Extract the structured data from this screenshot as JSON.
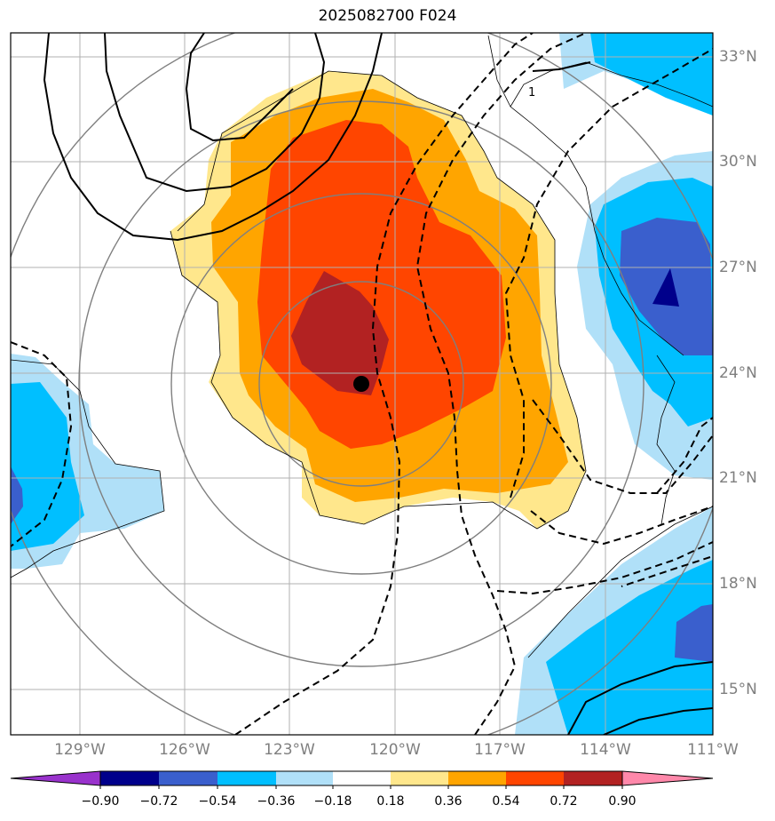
{
  "title": "2025082700 F024",
  "map": {
    "lat_labels": [
      "33°N",
      "30°N",
      "27°N",
      "24°N",
      "21°N",
      "18°N",
      "15°N"
    ],
    "lon_labels": [
      "129°W",
      "126°W",
      "123°W",
      "120°W",
      "117°W",
      "114°W",
      "111°W"
    ],
    "contour_label": "1",
    "storm_center": {
      "lat": 23.7,
      "lon": "120.9°W"
    }
  },
  "colorbar": {
    "labels": [
      "−0.90",
      "−0.72",
      "−0.54",
      "−0.36",
      "−0.18",
      "0.18",
      "0.36",
      "0.54",
      "0.72",
      "0.90"
    ],
    "colors": [
      "#9932cc",
      "#00008b",
      "#3a5fcd",
      "#00bfff",
      "#b0e0f8",
      "#ffffff",
      "#ffe78c",
      "#ffa500",
      "#ff4500",
      "#b22222",
      "#ff88aa"
    ]
  }
}
